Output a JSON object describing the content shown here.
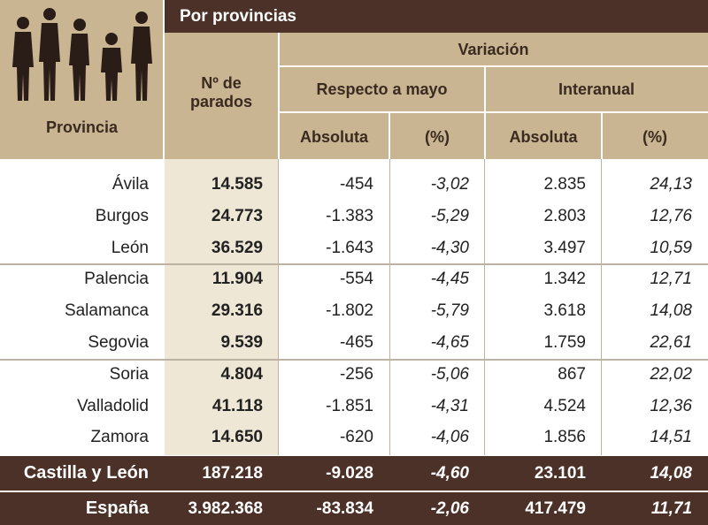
{
  "header": {
    "title": "Por provincias",
    "column_provincia": "Provincia",
    "column_parados": "Nº de parados",
    "variacion": "Variación",
    "respecto": "Respecto a mayo",
    "interanual": "Interanual",
    "subcolumns": [
      "Absoluta",
      "(%)",
      "Absoluta",
      "(%)"
    ]
  },
  "table": {
    "rows": [
      [
        "Ávila",
        "14.585",
        "-454",
        "-3,02",
        "2.835",
        "24,13"
      ],
      [
        "Burgos",
        "24.773",
        "-1.383",
        "-5,29",
        "2.803",
        "12,76"
      ],
      [
        "León",
        "36.529",
        "-1.643",
        "-4,30",
        "3.497",
        "10,59"
      ],
      [
        "Palencia",
        "11.904",
        "-554",
        "-4,45",
        "1.342",
        "12,71"
      ],
      [
        "Salamanca",
        "29.316",
        "-1.802",
        "-5,79",
        "3.618",
        "14,08"
      ],
      [
        "Segovia",
        "9.539",
        "-465",
        "-4,65",
        "1.759",
        "22,61"
      ],
      [
        "Soria",
        "4.804",
        "-256",
        "-5,06",
        "867",
        "22,02"
      ],
      [
        "Valladolid",
        "41.118",
        "-1.851",
        "-4,31",
        "4.524",
        "12,36"
      ],
      [
        "Zamora",
        "14.650",
        "-620",
        "-4,06",
        "1.856",
        "14,51"
      ]
    ],
    "totals": [
      [
        "Castilla y León",
        "187.218",
        "-9.028",
        "-4,60",
        "23.101",
        "14,08"
      ],
      [
        "España",
        "3.982.368",
        "-83.834",
        "-2,06",
        "417.479",
        "11,71"
      ]
    ]
  }
}
